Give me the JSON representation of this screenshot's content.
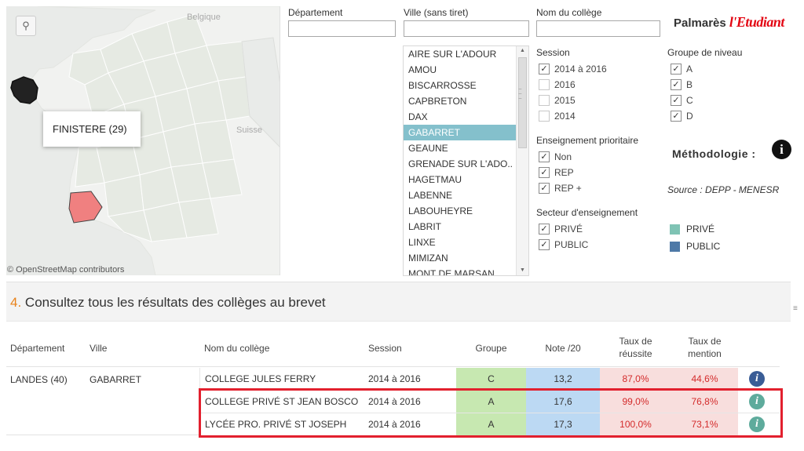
{
  "map": {
    "search_icon": "search-icon",
    "labels": {
      "belgique": "Belgique",
      "suisse": "Suisse"
    },
    "tooltip": "FINISTERE (29)",
    "attribution": "© OpenStreetMap contributors",
    "colors": {
      "land": "#f2f2f1",
      "dept": "#e9ece6",
      "highlight": "#f08080",
      "finistere": "#222222",
      "sea": "#e9ebe9"
    }
  },
  "filters": {
    "departement": {
      "label": "Département",
      "value": ""
    },
    "ville": {
      "label": "Ville (sans tiret)",
      "value": ""
    },
    "college": {
      "label": "Nom du collège",
      "value": ""
    },
    "ville_list": [
      "AIRE SUR L'ADOUR",
      "AMOU",
      "BISCARROSSE",
      "CAPBRETON",
      "DAX",
      "GABARRET",
      "GEAUNE",
      "GRENADE SUR L'ADO..",
      "HAGETMAU",
      "LABENNE",
      "LABOUHEYRE",
      "LABRIT",
      "LINXE",
      "MIMIZAN",
      "MONT DE MARSAN"
    ],
    "ville_selected": "GABARRET",
    "session": {
      "title": "Session",
      "options": [
        {
          "label": "2014 à 2016",
          "checked": true
        },
        {
          "label": "2016",
          "checked": false
        },
        {
          "label": "2015",
          "checked": false
        },
        {
          "label": "2014",
          "checked": false
        }
      ]
    },
    "groupe": {
      "title": "Groupe de niveau",
      "options": [
        {
          "label": "A",
          "checked": true
        },
        {
          "label": "B",
          "checked": true
        },
        {
          "label": "C",
          "checked": true
        },
        {
          "label": "D",
          "checked": true
        }
      ]
    },
    "prioritaire": {
      "title": "Enseignement prioritaire",
      "options": [
        {
          "label": "Non",
          "checked": true
        },
        {
          "label": "REP",
          "checked": true
        },
        {
          "label": "REP +",
          "checked": true
        }
      ]
    },
    "secteur": {
      "title": "Secteur d'enseignement",
      "options": [
        {
          "label": "PRIVÉ",
          "checked": true
        },
        {
          "label": "PUBLIC",
          "checked": true
        }
      ]
    }
  },
  "brand": {
    "prefix": "Palmarès",
    "name": "l'Etudiant",
    "color": "#e30613"
  },
  "methodologie": {
    "label": "Méthodologie :",
    "icon": "info-icon"
  },
  "source": "Source : DEPP - MENESR",
  "legend": [
    {
      "label": "PRIVÉ",
      "color": "#7fc3b4"
    },
    {
      "label": "PUBLIC",
      "color": "#4e79a7"
    }
  ],
  "section": {
    "number": "4.",
    "title": "Consultez tous les résultats des collèges au brevet"
  },
  "table": {
    "headers": {
      "departement": "Département",
      "ville": "Ville",
      "nom": "Nom du collège",
      "session": "Session",
      "groupe": "Groupe",
      "note": "Note /20",
      "taux1": "Taux de",
      "taux2": "réussite",
      "mention1": "Taux de",
      "mention2": "mention"
    },
    "departement": "LANDES (40)",
    "ville": "GABARRET",
    "rows": [
      {
        "nom": "COLLEGE JULES FERRY",
        "session": "2014 à 2016",
        "groupe": "C",
        "note": "13,2",
        "taux": "87,0%",
        "mention": "44,6%",
        "sector_color": "#3a5d96"
      },
      {
        "nom": "COLLEGE PRIVÉ ST JEAN BOSCO",
        "session": "2014 à 2016",
        "groupe": "A",
        "note": "17,6",
        "taux": "99,0%",
        "mention": "76,8%",
        "sector_color": "#5eab9c"
      },
      {
        "nom": "LYCÉE PRO. PRIVÉ ST JOSEPH",
        "session": "2014 à 2016",
        "groupe": "A",
        "note": "17,3",
        "taux": "100,0%",
        "mention": "73,1%",
        "sector_color": "#5eab9c"
      }
    ],
    "highlight_color": "#e2202e"
  }
}
